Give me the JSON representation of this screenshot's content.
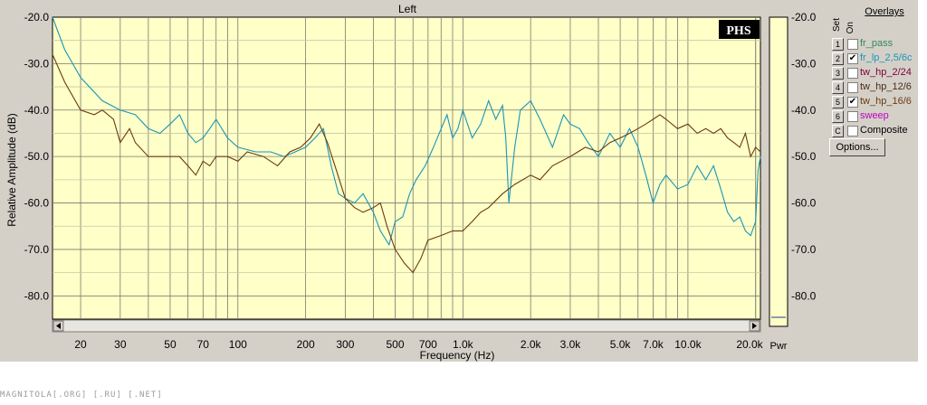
{
  "window_title": "Left",
  "badge": "PHS",
  "watermark": "MAGNITOLA[.ORG] [.RU] [.NET]",
  "overlays": {
    "title": "Overlays",
    "col_set": "Set",
    "col_on": "On",
    "items": [
      {
        "num": "1",
        "checked": false,
        "label": "fr_pass",
        "color": "#2e8b57"
      },
      {
        "num": "2",
        "checked": true,
        "label": "fr_lp_2,5/6c",
        "color": "#1a95b8"
      },
      {
        "num": "3",
        "checked": false,
        "label": "tw_hp_2/24",
        "color": "#800040"
      },
      {
        "num": "4",
        "checked": false,
        "label": "tw_hp_12/6",
        "color": "#4b2a1a"
      },
      {
        "num": "5",
        "checked": true,
        "label": "tw_hp_16/6",
        "color": "#6b3a10"
      },
      {
        "num": "6",
        "checked": false,
        "label": "sweep",
        "color": "#c000c0"
      },
      {
        "num": "C",
        "checked": false,
        "label": "Composite",
        "color": "#000000"
      }
    ],
    "options_label": "Options..."
  },
  "chart_data": {
    "type": "line",
    "title": "Left",
    "xlabel": "Frequency (Hz)",
    "ylabel": "Relative Amplitude (dB)",
    "x_scale": "log",
    "xlim": [
      15,
      21000
    ],
    "ylim": [
      -85,
      -20
    ],
    "x_tick_labels": [
      {
        "value": 20,
        "label": "20"
      },
      {
        "value": 30,
        "label": "30"
      },
      {
        "value": 50,
        "label": "50"
      },
      {
        "value": 70,
        "label": "70"
      },
      {
        "value": 100,
        "label": "100"
      },
      {
        "value": 200,
        "label": "200"
      },
      {
        "value": 300,
        "label": "300"
      },
      {
        "value": 500,
        "label": "500"
      },
      {
        "value": 700,
        "label": "700"
      },
      {
        "value": 1000,
        "label": "1.0k"
      },
      {
        "value": 2000,
        "label": "2.0k"
      },
      {
        "value": 3000,
        "label": "3.0k"
      },
      {
        "value": 5000,
        "label": "5.0k"
      },
      {
        "value": 7000,
        "label": "7.0k"
      },
      {
        "value": 10000,
        "label": "10.0k"
      },
      {
        "value": 20000,
        "label": "20.0k"
      }
    ],
    "y_tick_labels": [
      "-20.0",
      "-30.0",
      "-40.0",
      "-50.0",
      "-60.0",
      "-70.0",
      "-80.0"
    ],
    "y_tick_values": [
      -20,
      -30,
      -40,
      -50,
      -60,
      -70,
      -80
    ],
    "right_axis_label": "Pwr",
    "grid": true,
    "series": [
      {
        "color": "#1a95b8",
        "points": [
          [
            15,
            -20
          ],
          [
            17,
            -27
          ],
          [
            20,
            -33
          ],
          [
            25,
            -38
          ],
          [
            30,
            -40
          ],
          [
            35,
            -41
          ],
          [
            40,
            -44
          ],
          [
            45,
            -45
          ],
          [
            50,
            -43
          ],
          [
            55,
            -41
          ],
          [
            60,
            -45
          ],
          [
            65,
            -47
          ],
          [
            70,
            -46
          ],
          [
            75,
            -44
          ],
          [
            80,
            -42
          ],
          [
            90,
            -46
          ],
          [
            100,
            -48
          ],
          [
            120,
            -49
          ],
          [
            140,
            -49
          ],
          [
            160,
            -50
          ],
          [
            180,
            -49
          ],
          [
            200,
            -48
          ],
          [
            220,
            -46
          ],
          [
            240,
            -44
          ],
          [
            260,
            -52
          ],
          [
            280,
            -58
          ],
          [
            300,
            -59
          ],
          [
            330,
            -60
          ],
          [
            360,
            -58
          ],
          [
            400,
            -62
          ],
          [
            430,
            -66
          ],
          [
            470,
            -69
          ],
          [
            500,
            -64
          ],
          [
            540,
            -63
          ],
          [
            580,
            -58
          ],
          [
            620,
            -55
          ],
          [
            680,
            -52
          ],
          [
            740,
            -48
          ],
          [
            800,
            -44
          ],
          [
            850,
            -41
          ],
          [
            900,
            -46
          ],
          [
            950,
            -44
          ],
          [
            1000,
            -40
          ],
          [
            1100,
            -46
          ],
          [
            1200,
            -43
          ],
          [
            1300,
            -38
          ],
          [
            1400,
            -42
          ],
          [
            1500,
            -39
          ],
          [
            1550,
            -46
          ],
          [
            1600,
            -60
          ],
          [
            1700,
            -48
          ],
          [
            1800,
            -40
          ],
          [
            2000,
            -38
          ],
          [
            2200,
            -42
          ],
          [
            2500,
            -48
          ],
          [
            2800,
            -41
          ],
          [
            3000,
            -43
          ],
          [
            3300,
            -44
          ],
          [
            3600,
            -47
          ],
          [
            4000,
            -50
          ],
          [
            4500,
            -45
          ],
          [
            5000,
            -48
          ],
          [
            5500,
            -44
          ],
          [
            6000,
            -48
          ],
          [
            6500,
            -54
          ],
          [
            7000,
            -60
          ],
          [
            7500,
            -56
          ],
          [
            8000,
            -54
          ],
          [
            9000,
            -57
          ],
          [
            10000,
            -56
          ],
          [
            11000,
            -52
          ],
          [
            12000,
            -55
          ],
          [
            13000,
            -52
          ],
          [
            14000,
            -57
          ],
          [
            15000,
            -62
          ],
          [
            16000,
            -64
          ],
          [
            17000,
            -63
          ],
          [
            18000,
            -66
          ],
          [
            19000,
            -67
          ],
          [
            20000,
            -64
          ],
          [
            20500,
            -53
          ],
          [
            21000,
            -50
          ]
        ]
      },
      {
        "color": "#6b3a10",
        "points": [
          [
            15,
            -28
          ],
          [
            17,
            -34
          ],
          [
            20,
            -40
          ],
          [
            23,
            -41
          ],
          [
            25,
            -40
          ],
          [
            28,
            -42
          ],
          [
            30,
            -47
          ],
          [
            33,
            -44
          ],
          [
            35,
            -47
          ],
          [
            40,
            -50
          ],
          [
            50,
            -50
          ],
          [
            55,
            -50
          ],
          [
            60,
            -52
          ],
          [
            65,
            -54
          ],
          [
            70,
            -51
          ],
          [
            75,
            -52
          ],
          [
            80,
            -50
          ],
          [
            90,
            -50
          ],
          [
            100,
            -51
          ],
          [
            110,
            -49
          ],
          [
            130,
            -50
          ],
          [
            150,
            -52
          ],
          [
            170,
            -49
          ],
          [
            190,
            -48
          ],
          [
            210,
            -46
          ],
          [
            230,
            -43
          ],
          [
            250,
            -47
          ],
          [
            270,
            -52
          ],
          [
            300,
            -59
          ],
          [
            330,
            -61
          ],
          [
            360,
            -62
          ],
          [
            400,
            -61
          ],
          [
            430,
            -60
          ],
          [
            460,
            -65
          ],
          [
            500,
            -70
          ],
          [
            550,
            -73
          ],
          [
            600,
            -75
          ],
          [
            650,
            -72
          ],
          [
            700,
            -68
          ],
          [
            800,
            -67
          ],
          [
            900,
            -66
          ],
          [
            1000,
            -66
          ],
          [
            1100,
            -64
          ],
          [
            1200,
            -62
          ],
          [
            1300,
            -61
          ],
          [
            1500,
            -58
          ],
          [
            1700,
            -56
          ],
          [
            2000,
            -54
          ],
          [
            2200,
            -55
          ],
          [
            2500,
            -52
          ],
          [
            3000,
            -50
          ],
          [
            3500,
            -48
          ],
          [
            4000,
            -49
          ],
          [
            4500,
            -47
          ],
          [
            5000,
            -46
          ],
          [
            5500,
            -45
          ],
          [
            6000,
            -44
          ],
          [
            6500,
            -43
          ],
          [
            7000,
            -42
          ],
          [
            7500,
            -41
          ],
          [
            8000,
            -42
          ],
          [
            9000,
            -44
          ],
          [
            10000,
            -43
          ],
          [
            11000,
            -45
          ],
          [
            12000,
            -44
          ],
          [
            13000,
            -45
          ],
          [
            14000,
            -44
          ],
          [
            15000,
            -46
          ],
          [
            16000,
            -47
          ],
          [
            17000,
            -48
          ],
          [
            18000,
            -45
          ],
          [
            19000,
            -50
          ],
          [
            20000,
            -48
          ],
          [
            21000,
            -49
          ]
        ]
      }
    ]
  }
}
